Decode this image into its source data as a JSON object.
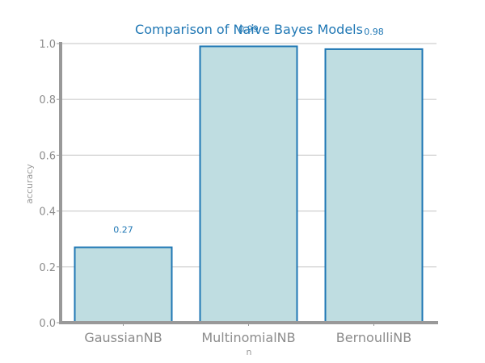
{
  "chart_data": {
    "type": "bar",
    "title": "Comparison of Naive Bayes Models",
    "xlabel": "n",
    "ylabel": "accuracy",
    "categories": [
      "GaussianNB",
      "MultinomialNB",
      "BernoulliNB"
    ],
    "values": [
      0.27,
      0.99,
      0.98
    ],
    "data_labels": [
      "0.27",
      "0.99",
      "0.98"
    ],
    "ylim": [
      0,
      1.0
    ],
    "yticks": [
      0.0,
      0.2,
      0.4,
      0.6,
      0.8,
      1.0
    ],
    "ytick_labels": [
      "0.0",
      "0.2",
      "0.4",
      "0.6",
      "0.8",
      "1.0"
    ],
    "grid": true,
    "bar_fill_color": "#bfdde1",
    "bar_edge_color": "#1f77b4",
    "title_color": "#1f77b4",
    "axis_color": "#999999"
  }
}
